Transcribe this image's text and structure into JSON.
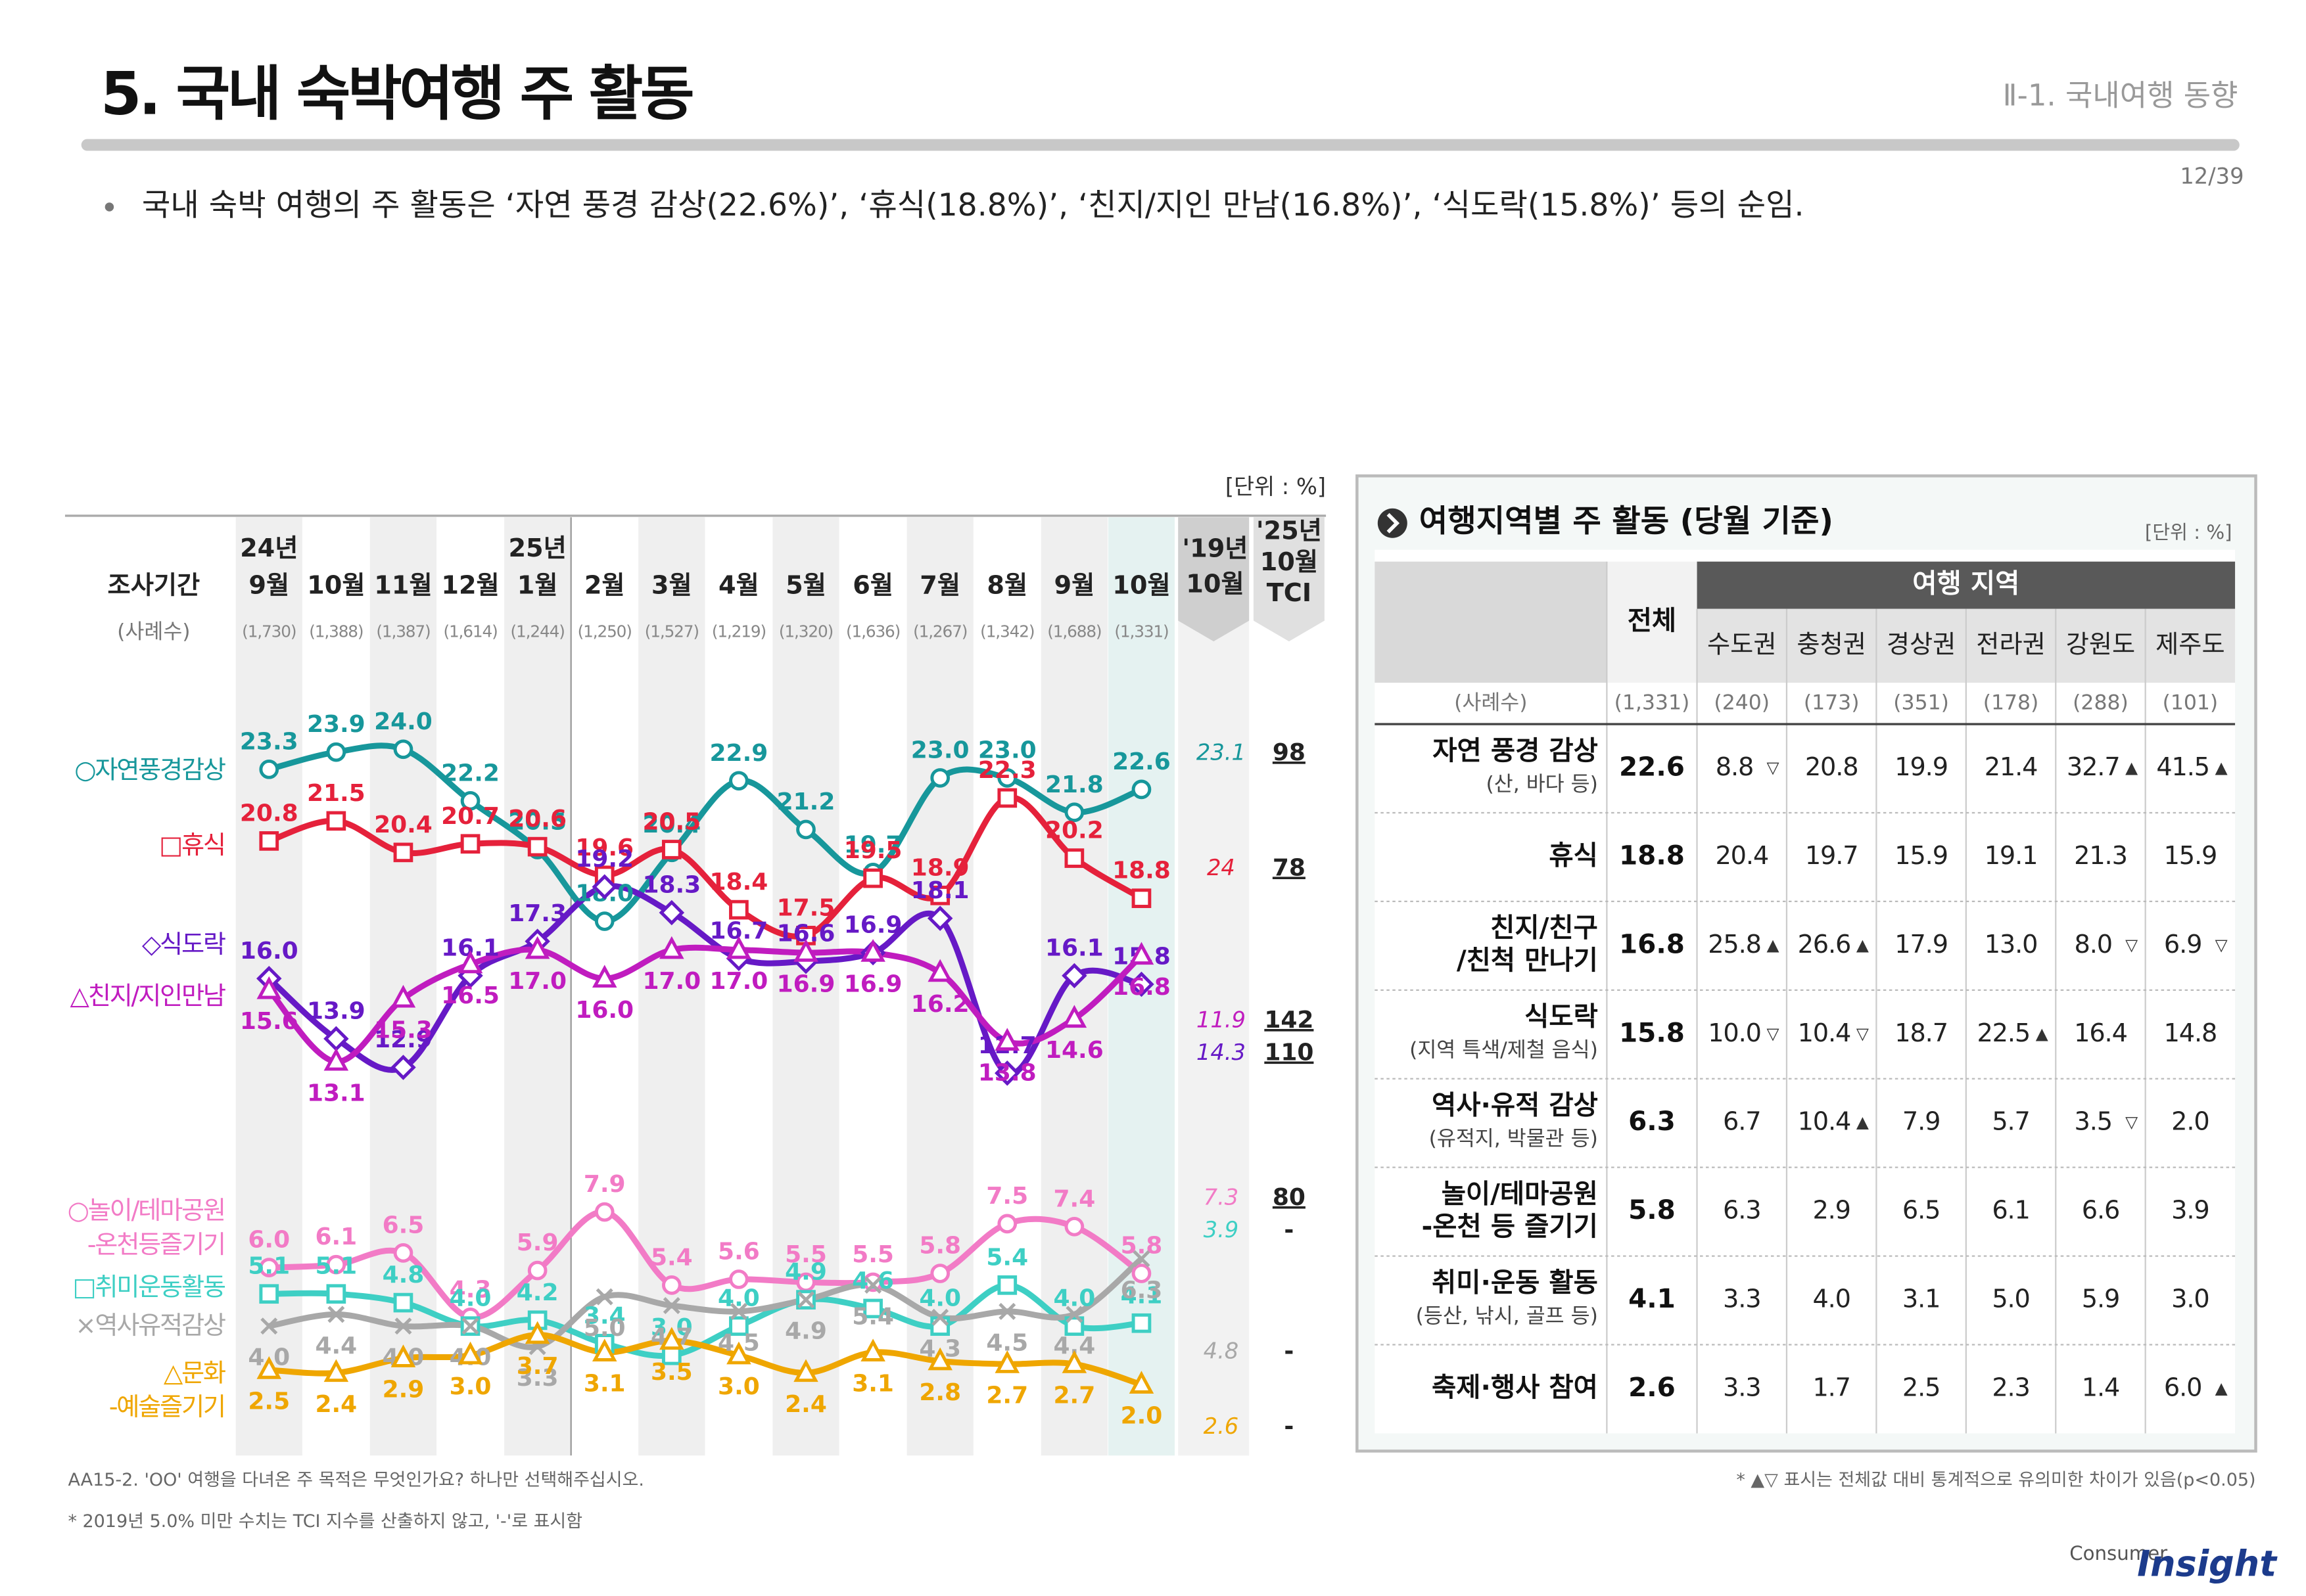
{
  "header": {
    "title": "5. 국내 숙박여행 주 활동",
    "section": "Ⅱ-1. 국내여행 동향",
    "page": "12/39"
  },
  "summary": "국내 숙박 여행의 주 활동은 ‘자연 풍경 감상(22.6%)’, ‘휴식(18.8%)’, ‘친지/지인 만남(16.8%)’, ‘식도락(15.8%)’ 등의 순임.",
  "chart_data": {
    "type": "line",
    "unit": "[단위 : %]",
    "period_label": "조사기간",
    "sample_label": "(사례수)",
    "years": [
      "24년",
      null,
      null,
      null,
      "25년",
      null,
      null,
      null,
      null,
      null,
      null,
      null,
      null,
      null
    ],
    "categories": [
      "9월",
      "10월",
      "11월",
      "12월",
      "1월",
      "2월",
      "3월",
      "4월",
      "5월",
      "6월",
      "7월",
      "8월",
      "9월",
      "10월"
    ],
    "samples": [
      "(1,730)",
      "(1,388)",
      "(1,387)",
      "(1,614)",
      "(1,244)",
      "(1,250)",
      "(1,527)",
      "(1,219)",
      "(1,320)",
      "(1,636)",
      "(1,267)",
      "(1,342)",
      "(1,688)",
      "(1,331)"
    ],
    "prev_label": "'19년\n10월",
    "tci_label": "'25년\n10월\nTCI",
    "series": [
      {
        "name": "○자연풍경감상",
        "color": "#17979b",
        "marker": "circle",
        "values": [
          23.3,
          23.9,
          24.0,
          22.2,
          20.5,
          18.0,
          20.4,
          22.9,
          21.2,
          19.7,
          23.0,
          23.0,
          21.8,
          22.6
        ],
        "value_labels": [
          "23.3",
          "23.9",
          "24.0",
          "22.2",
          "20.5",
          "18.0",
          "20.4",
          "22.9",
          "21.2",
          "19.7",
          "23.0",
          "23.0",
          "21.8",
          "22.6"
        ],
        "prev": 23.1,
        "tci": 98
      },
      {
        "name": "□휴식",
        "color": "#e5213b",
        "marker": "square",
        "values": [
          20.8,
          21.5,
          20.4,
          20.7,
          20.6,
          19.6,
          20.5,
          18.4,
          17.5,
          19.5,
          18.9,
          22.3,
          20.2,
          18.8
        ],
        "value_labels": [
          "20.8",
          "21.5",
          "20.4",
          "20.7",
          "20.6",
          "19.6",
          "20.5",
          "18.4",
          "17.5",
          "19.5",
          "18.9",
          "22.3",
          "20.2",
          "18.8"
        ],
        "prev": 24.0,
        "prev_label": "24.0",
        "tci": 78
      },
      {
        "name": "◇식도락",
        "color": "#6619c6",
        "marker": "diamond",
        "values": [
          16.0,
          13.9,
          12.9,
          16.1,
          17.3,
          19.2,
          18.3,
          16.7,
          16.6,
          16.9,
          18.1,
          12.7,
          16.1,
          15.8
        ],
        "value_labels": [
          "16.0",
          "13.9",
          "12.9",
          "16.1",
          "17.3",
          "19.2",
          "18.3",
          "16.7",
          "16.6",
          "16.9",
          "18.1",
          "12.7",
          "16.1",
          "15.8"
        ],
        "prev": 14.3,
        "tci": 110
      },
      {
        "name": "△친지/지인만남",
        "color": "#c01cbf",
        "marker": "triangle",
        "values": [
          15.6,
          13.1,
          15.3,
          16.5,
          17.0,
          16.0,
          17.0,
          17.0,
          16.9,
          16.9,
          16.2,
          13.8,
          14.6,
          16.8
        ],
        "value_labels": [
          "15.6",
          "13.1",
          "15.3",
          "16.5",
          "17.0",
          "16.0",
          "17.0",
          "17.0",
          "16.9",
          "16.9",
          "16.2",
          "13.8",
          "14.6",
          "16.8"
        ],
        "prev": 11.9,
        "tci": 142
      },
      {
        "name": "○놀이/테마공원\n-온천등즐기기",
        "color": "#f27bc6",
        "marker": "circle",
        "values": [
          6.0,
          6.1,
          6.5,
          4.3,
          5.9,
          7.9,
          5.4,
          5.6,
          5.5,
          5.5,
          5.8,
          7.5,
          7.4,
          5.8
        ],
        "value_labels": [
          "6.0",
          "6.1",
          "6.5",
          "4.3",
          "5.9",
          "7.9",
          "5.4",
          "5.6",
          "5.5",
          "5.5",
          "5.8",
          "7.5",
          "7.4",
          "5.8"
        ],
        "prev": 7.3,
        "tci": 80
      },
      {
        "name": "□취미운동활동",
        "color": "#3ecfc4",
        "marker": "square",
        "values": [
          5.1,
          5.1,
          4.8,
          4.0,
          4.2,
          3.4,
          3.0,
          4.0,
          4.9,
          4.6,
          4.0,
          5.4,
          4.0,
          4.1
        ],
        "value_labels": [
          "5.1",
          "5.1",
          "4.8",
          "4.0",
          "4.2",
          "3.4",
          "3.0",
          "4.0",
          "4.9",
          "4.6",
          "4.0",
          "5.4",
          "4.0",
          "4.1"
        ],
        "prev": 3.9,
        "tci": "-"
      },
      {
        "name": "×역사유적감상",
        "color": "#a8a8a8",
        "marker": "x",
        "values": [
          4.0,
          4.4,
          4.0,
          4.0,
          3.3,
          5.0,
          4.7,
          4.5,
          4.9,
          5.4,
          4.3,
          4.5,
          4.4,
          6.3
        ],
        "value_labels": [
          "4.0",
          "4.4",
          "4.0",
          "4.0",
          "3.3",
          "5.0",
          "4.7",
          "4.5",
          "4.9",
          "5.4",
          "4.3",
          "4.5",
          "4.4",
          "6.3"
        ],
        "prev": 4.8,
        "tci": "-"
      },
      {
        "name": "△문화\n-예술즐기기",
        "color": "#efa600",
        "marker": "triangle",
        "values": [
          2.5,
          2.4,
          2.9,
          3.0,
          3.7,
          3.1,
          3.5,
          3.0,
          2.4,
          3.1,
          2.8,
          2.7,
          2.7,
          2.0
        ],
        "value_labels": [
          "2.5",
          "2.4",
          "2.9",
          "3.0",
          "3.7",
          "3.1",
          "3.5",
          "3.0",
          "2.4",
          "3.1",
          "2.8",
          "2.7",
          "2.7",
          "2.0"
        ],
        "prev": 2.6,
        "tci": "-"
      }
    ]
  },
  "table": {
    "title": "여행지역별 주 활동 (당월 기준)",
    "unit": "[단위 : %]",
    "total_header": "전체",
    "group_header": "여행 지역",
    "regions": [
      "수도권",
      "충청권",
      "경상권",
      "전라권",
      "강원도",
      "제주도"
    ],
    "sample_label": "(사례수)",
    "sample_total": "(1,331)",
    "samples": [
      "(240)",
      "(173)",
      "(351)",
      "(178)",
      "(288)",
      "(101)"
    ],
    "rows": [
      {
        "label": [
          "자연 풍경 감상"
        ],
        "note": "(산, 바다 등)",
        "total": "22.6",
        "values": [
          "8.8",
          "20.8",
          "19.9",
          "21.4",
          "32.7",
          "41.5"
        ],
        "flags": [
          "▽",
          null,
          null,
          null,
          "▲",
          "▲"
        ]
      },
      {
        "label": [
          "휴식"
        ],
        "total": "18.8",
        "values": [
          "20.4",
          "19.7",
          "15.9",
          "19.1",
          "21.3",
          "15.9"
        ],
        "flags": [
          null,
          null,
          null,
          null,
          null,
          null
        ]
      },
      {
        "label": [
          "친지/친구",
          "/친척 만나기"
        ],
        "total": "16.8",
        "values": [
          "25.8",
          "26.6",
          "17.9",
          "13.0",
          "8.0",
          "6.9"
        ],
        "flags": [
          "▲",
          "▲",
          null,
          null,
          "▽",
          "▽"
        ]
      },
      {
        "label": [
          "식도락"
        ],
        "note": "(지역 특색/제철 음식)",
        "total": "15.8",
        "values": [
          "10.0",
          "10.4",
          "18.7",
          "22.5",
          "16.4",
          "14.8"
        ],
        "flags": [
          "▽",
          "▽",
          null,
          "▲",
          null,
          null
        ]
      },
      {
        "label": [
          "역사·유적 감상"
        ],
        "note": "(유적지, 박물관 등)",
        "total": "6.3",
        "values": [
          "6.7",
          "10.4",
          "7.9",
          "5.7",
          "3.5",
          "2.0"
        ],
        "flags": [
          null,
          "▲",
          null,
          null,
          "▽",
          null
        ]
      },
      {
        "label": [
          "놀이/테마공원",
          "-온천 등 즐기기"
        ],
        "total": "5.8",
        "values": [
          "6.3",
          "2.9",
          "6.5",
          "6.1",
          "6.6",
          "3.9"
        ],
        "flags": [
          null,
          null,
          null,
          null,
          null,
          null
        ]
      },
      {
        "label": [
          "취미·운동 활동"
        ],
        "note": "(등산, 낚시, 골프 등)",
        "total": "4.1",
        "values": [
          "3.3",
          "4.0",
          "3.1",
          "5.0",
          "5.9",
          "3.0"
        ],
        "flags": [
          null,
          null,
          null,
          null,
          null,
          null
        ]
      },
      {
        "label": [
          "축제·행사 참여"
        ],
        "total": "2.6",
        "values": [
          "3.3",
          "1.7",
          "2.5",
          "2.3",
          "1.4",
          "6.0"
        ],
        "flags": [
          null,
          null,
          null,
          null,
          null,
          "▲"
        ]
      }
    ]
  },
  "footnotes": {
    "question": "AA15-2. 'OO' 여행을 다녀온 주 목적은 무엇인가요? 하나만 선택해주십시오.",
    "tci_note": "* 2019년 5.0% 미만 수치는 TCI 지수를 산출하지 않고, '-'로 표시함",
    "sig_note": "* ▲▽ 표시는 전체값 대비 통계적으로 유의미한 차이가 있음(p<0.05)"
  },
  "logo": {
    "small": "Consumer",
    "big": "Insight"
  }
}
